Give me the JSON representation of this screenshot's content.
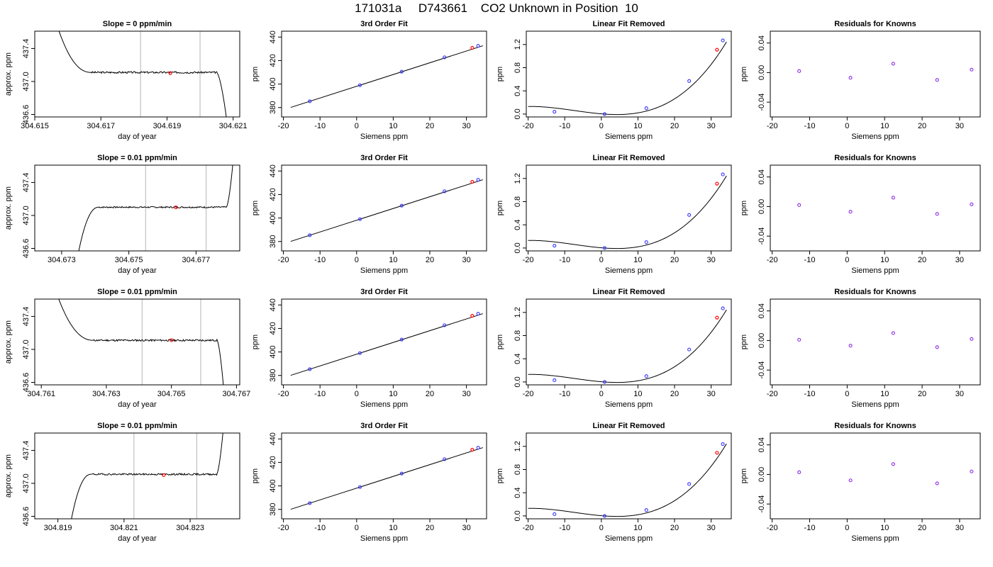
{
  "page": {
    "title": "171031a     D743661    CO2 Unknown in Position  10"
  },
  "chart_data": [
    {
      "type": "line",
      "panel": "trace",
      "row": 1,
      "title": "Slope =  0  ppm/min",
      "xlabel": "day of year",
      "ylabel": "approx. ppm",
      "xlim": [
        304.615,
        304.6212
      ],
      "ylim": [
        436.57,
        437.61
      ],
      "xticks": [
        "304.615",
        "304.617",
        "304.619",
        "304.621"
      ],
      "yticks": [
        "436.6",
        "437.0",
        "437.4"
      ],
      "vlines": [
        304.6182,
        304.62
      ],
      "highlight_point": {
        "x": 304.6191,
        "y": 437.102
      },
      "trace": {
        "start_x": 304.6157,
        "stable_start_x": 304.6167,
        "stable_end_x": 304.6205,
        "end_x": 304.6208,
        "level": 437.11,
        "amplitude": 0.011,
        "start_y": 437.65,
        "end_y": 436.55,
        "seed": 3
      }
    },
    {
      "type": "line",
      "panel": "trace",
      "row": 2,
      "title": "Slope =  0.01  ppm/min",
      "xlabel": "day of year",
      "ylabel": "approx. ppm",
      "xlim": [
        304.6722,
        304.6783
      ],
      "ylim": [
        436.57,
        437.61
      ],
      "xticks": [
        "304.673",
        "304.675",
        "304.677"
      ],
      "yticks": [
        "436.6",
        "437.0",
        "437.4"
      ],
      "vlines": [
        304.6755,
        304.6773
      ],
      "highlight_point": {
        "x": 304.6764,
        "y": 437.098
      },
      "trace": {
        "start_x": 304.6735,
        "stable_start_x": 304.6741,
        "stable_end_x": 304.6779,
        "end_x": 304.6781,
        "level": 437.1,
        "amplitude": 0.009,
        "start_y": 436.55,
        "end_y": 437.65,
        "seed": 7
      }
    },
    {
      "type": "line",
      "panel": "trace",
      "row": 3,
      "title": "Slope =  0.01  ppm/min",
      "xlabel": "day of year",
      "ylabel": "approx. ppm",
      "xlim": [
        304.7608,
        304.7671
      ],
      "ylim": [
        436.57,
        437.61
      ],
      "xticks": [
        "304.761",
        "304.763",
        "304.765",
        "304.767"
      ],
      "yticks": [
        "436.6",
        "437.0",
        "437.4"
      ],
      "vlines": [
        304.7641,
        304.7659
      ],
      "highlight_point": {
        "x": 304.765,
        "y": 437.112
      },
      "trace": {
        "start_x": 304.7615,
        "stable_start_x": 304.7626,
        "stable_end_x": 304.7664,
        "end_x": 304.7666,
        "level": 437.11,
        "amplitude": 0.011,
        "start_y": 437.65,
        "end_y": 436.55,
        "seed": 11
      }
    },
    {
      "type": "line",
      "panel": "trace",
      "row": 4,
      "title": "Slope =  0.01  ppm/min",
      "xlabel": "day of year",
      "ylabel": "approx. ppm",
      "xlim": [
        304.8183,
        304.8245
      ],
      "ylim": [
        436.57,
        437.61
      ],
      "xticks": [
        "304.819",
        "304.821",
        "304.823"
      ],
      "yticks": [
        "436.6",
        "437.0",
        "437.4"
      ],
      "vlines": [
        304.8213,
        304.8232
      ],
      "highlight_point": {
        "x": 304.8222,
        "y": 437.1
      },
      "trace": {
        "start_x": 304.8194,
        "stable_start_x": 304.82,
        "stable_end_x": 304.8238,
        "end_x": 304.824,
        "level": 437.11,
        "amplitude": 0.01,
        "start_y": 436.55,
        "end_y": 437.65,
        "seed": 19
      }
    },
    {
      "type": "scatter",
      "panel": "fit",
      "row": 1,
      "title": "3rd Order Fit",
      "xlabel": "Siemens ppm",
      "ylabel": "ppm",
      "xlim": [
        -20.5,
        35.5
      ],
      "ylim": [
        372,
        445
      ],
      "xticks": [
        "-20",
        "-10",
        "0",
        "10",
        "20",
        "30"
      ],
      "yticks": [
        "380",
        "400",
        "420",
        "440"
      ],
      "curve": {
        "x0": -18,
        "x1": 34.5,
        "intercept": 398.1,
        "slope": 1.0
      },
      "knowns": [
        {
          "x": -12.8,
          "y": 385.3
        },
        {
          "x": 0.9,
          "y": 399.0
        },
        {
          "x": 12.3,
          "y": 410.5
        },
        {
          "x": 24.0,
          "y": 422.7
        },
        {
          "x": 33.2,
          "y": 432.5
        }
      ],
      "unknowns": [
        {
          "x": 31.6,
          "y": 430.8
        }
      ]
    },
    {
      "type": "scatter",
      "panel": "fit",
      "row": 2,
      "title": "3rd Order Fit",
      "xlabel": "Siemens ppm",
      "ylabel": "ppm",
      "xlim": [
        -20.5,
        35.5
      ],
      "ylim": [
        372,
        445
      ],
      "xticks": [
        "-20",
        "-10",
        "0",
        "10",
        "20",
        "30"
      ],
      "yticks": [
        "380",
        "400",
        "420",
        "440"
      ],
      "curve": {
        "x0": -18,
        "x1": 34.5,
        "intercept": 398.1,
        "slope": 1.0
      },
      "knowns": [
        {
          "x": -12.8,
          "y": 385.3
        },
        {
          "x": 0.9,
          "y": 399.0
        },
        {
          "x": 12.3,
          "y": 410.5
        },
        {
          "x": 24.0,
          "y": 422.7
        },
        {
          "x": 33.2,
          "y": 432.5
        }
      ],
      "unknowns": [
        {
          "x": 31.6,
          "y": 430.8
        }
      ]
    },
    {
      "type": "scatter",
      "panel": "fit",
      "row": 3,
      "title": "3rd Order Fit",
      "xlabel": "Siemens ppm",
      "ylabel": "ppm",
      "xlim": [
        -20.5,
        35.5
      ],
      "ylim": [
        372,
        445
      ],
      "xticks": [
        "-20",
        "-10",
        "0",
        "10",
        "20",
        "30"
      ],
      "yticks": [
        "380",
        "400",
        "420",
        "440"
      ],
      "curve": {
        "x0": -18,
        "x1": 34.5,
        "intercept": 398.1,
        "slope": 1.0
      },
      "knowns": [
        {
          "x": -12.8,
          "y": 385.3
        },
        {
          "x": 0.9,
          "y": 399.0
        },
        {
          "x": 12.3,
          "y": 410.5
        },
        {
          "x": 24.0,
          "y": 422.7
        },
        {
          "x": 33.2,
          "y": 432.5
        }
      ],
      "unknowns": [
        {
          "x": 31.6,
          "y": 430.8
        }
      ]
    },
    {
      "type": "scatter",
      "panel": "fit",
      "row": 4,
      "title": "3rd Order Fit",
      "xlabel": "Siemens ppm",
      "ylabel": "ppm",
      "xlim": [
        -20.5,
        35.5
      ],
      "ylim": [
        372,
        445
      ],
      "xticks": [
        "-20",
        "-10",
        "0",
        "10",
        "20",
        "30"
      ],
      "yticks": [
        "380",
        "400",
        "420",
        "440"
      ],
      "curve": {
        "x0": -18,
        "x1": 34.5,
        "intercept": 398.1,
        "slope": 1.0
      },
      "knowns": [
        {
          "x": -12.8,
          "y": 385.3
        },
        {
          "x": 0.9,
          "y": 399.0
        },
        {
          "x": 12.3,
          "y": 410.5
        },
        {
          "x": 24.0,
          "y": 422.7
        },
        {
          "x": 33.2,
          "y": 432.5
        }
      ],
      "unknowns": [
        {
          "x": 31.6,
          "y": 430.8
        }
      ]
    },
    {
      "type": "scatter",
      "panel": "linear_removed",
      "row": 1,
      "title": "Linear Fit Removed",
      "xlabel": "Siemens ppm",
      "ylabel": "ppm",
      "xlim": [
        -20.5,
        35.5
      ],
      "ylim": [
        -0.05,
        1.43
      ],
      "xticks": [
        "-20",
        "-10",
        "0",
        "10",
        "20",
        "30"
      ],
      "yticks": [
        "0.0",
        "0.4",
        "0.8",
        "1.2"
      ],
      "curve": {
        "x0": -20,
        "x1": 34.2
      },
      "knowns": [
        {
          "x": -12.8,
          "y": 0.04
        },
        {
          "x": 0.9,
          "y": 0.0
        },
        {
          "x": 12.3,
          "y": 0.1
        },
        {
          "x": 24.0,
          "y": 0.57
        },
        {
          "x": 33.2,
          "y": 1.27
        }
      ],
      "unknowns": [
        {
          "x": 31.6,
          "y": 1.11
        }
      ]
    },
    {
      "type": "scatter",
      "panel": "linear_removed",
      "row": 2,
      "title": "Linear Fit Removed",
      "xlabel": "Siemens ppm",
      "ylabel": "ppm",
      "xlim": [
        -20.5,
        35.5
      ],
      "ylim": [
        -0.05,
        1.43
      ],
      "xticks": [
        "-20",
        "-10",
        "0",
        "10",
        "20",
        "30"
      ],
      "yticks": [
        "0.0",
        "0.4",
        "0.8",
        "1.2"
      ],
      "curve": {
        "x0": -20,
        "x1": 34.2
      },
      "knowns": [
        {
          "x": -12.8,
          "y": 0.04
        },
        {
          "x": 0.9,
          "y": 0.0
        },
        {
          "x": 12.3,
          "y": 0.1
        },
        {
          "x": 24.0,
          "y": 0.57
        },
        {
          "x": 33.2,
          "y": 1.27
        }
      ],
      "unknowns": [
        {
          "x": 31.6,
          "y": 1.11
        }
      ]
    },
    {
      "type": "scatter",
      "panel": "linear_removed",
      "row": 3,
      "title": "Linear Fit Removed",
      "xlabel": "Siemens ppm",
      "ylabel": "ppm",
      "xlim": [
        -20.5,
        35.5
      ],
      "ylim": [
        -0.05,
        1.43
      ],
      "xticks": [
        "-20",
        "-10",
        "0",
        "10",
        "20",
        "30"
      ],
      "yticks": [
        "0.0",
        "0.4",
        "0.8",
        "1.2"
      ],
      "curve": {
        "x0": -20,
        "x1": 34.2
      },
      "knowns": [
        {
          "x": -12.8,
          "y": 0.03
        },
        {
          "x": 0.9,
          "y": 0.0
        },
        {
          "x": 12.3,
          "y": 0.1
        },
        {
          "x": 24.0,
          "y": 0.56
        },
        {
          "x": 33.2,
          "y": 1.27
        }
      ],
      "unknowns": [
        {
          "x": 31.6,
          "y": 1.11
        }
      ]
    },
    {
      "type": "scatter",
      "panel": "linear_removed",
      "row": 4,
      "title": "Linear Fit Removed",
      "xlabel": "Siemens ppm",
      "ylabel": "ppm",
      "xlim": [
        -20.5,
        35.5
      ],
      "ylim": [
        -0.05,
        1.43
      ],
      "xticks": [
        "-20",
        "-10",
        "0",
        "10",
        "20",
        "30"
      ],
      "yticks": [
        "0.0",
        "0.4",
        "0.8",
        "1.2"
      ],
      "curve": {
        "x0": -20,
        "x1": 34.2
      },
      "knowns": [
        {
          "x": -12.8,
          "y": 0.03
        },
        {
          "x": 0.9,
          "y": 0.0
        },
        {
          "x": 12.3,
          "y": 0.1
        },
        {
          "x": 24.0,
          "y": 0.55
        },
        {
          "x": 33.2,
          "y": 1.24
        }
      ],
      "unknowns": [
        {
          "x": 31.6,
          "y": 1.09
        }
      ]
    },
    {
      "type": "scatter",
      "panel": "residuals",
      "row": 1,
      "title": "Residuals for Knowns",
      "xlabel": "Siemens ppm",
      "ylabel": "ppm",
      "xlim": [
        -20.5,
        35.5
      ],
      "ylim": [
        -0.06,
        0.056
      ],
      "xticks": [
        "-20",
        "-10",
        "0",
        "10",
        "20",
        "30"
      ],
      "yticks": [
        "-0.04",
        "0.00",
        "0.04"
      ],
      "knowns": [
        {
          "x": -12.8,
          "y": 0.002
        },
        {
          "x": 0.9,
          "y": -0.007
        },
        {
          "x": 12.3,
          "y": 0.012
        },
        {
          "x": 24.0,
          "y": -0.01
        },
        {
          "x": 33.2,
          "y": 0.004
        }
      ]
    },
    {
      "type": "scatter",
      "panel": "residuals",
      "row": 2,
      "title": "Residuals for Knowns",
      "xlabel": "Siemens ppm",
      "ylabel": "ppm",
      "xlim": [
        -20.5,
        35.5
      ],
      "ylim": [
        -0.06,
        0.056
      ],
      "xticks": [
        "-20",
        "-10",
        "0",
        "10",
        "20",
        "30"
      ],
      "yticks": [
        "-0.04",
        "0.00",
        "0.04"
      ],
      "knowns": [
        {
          "x": -12.8,
          "y": 0.002
        },
        {
          "x": 0.9,
          "y": -0.007
        },
        {
          "x": 12.3,
          "y": 0.012
        },
        {
          "x": 24.0,
          "y": -0.01
        },
        {
          "x": 33.2,
          "y": 0.003
        }
      ]
    },
    {
      "type": "scatter",
      "panel": "residuals",
      "row": 3,
      "title": "Residuals for Knowns",
      "xlabel": "Siemens ppm",
      "ylabel": "ppm",
      "xlim": [
        -20.5,
        35.5
      ],
      "ylim": [
        -0.06,
        0.056
      ],
      "xticks": [
        "-20",
        "-10",
        "0",
        "10",
        "20",
        "30"
      ],
      "yticks": [
        "-0.04",
        "0.00",
        "0.04"
      ],
      "knowns": [
        {
          "x": -12.8,
          "y": 0.001
        },
        {
          "x": 0.9,
          "y": -0.007
        },
        {
          "x": 12.3,
          "y": 0.01
        },
        {
          "x": 24.0,
          "y": -0.009
        },
        {
          "x": 33.2,
          "y": 0.002
        }
      ]
    },
    {
      "type": "scatter",
      "panel": "residuals",
      "row": 4,
      "title": "Residuals for Knowns",
      "xlabel": "Siemens ppm",
      "ylabel": "ppm",
      "xlim": [
        -20.5,
        35.5
      ],
      "ylim": [
        -0.06,
        0.056
      ],
      "xticks": [
        "-20",
        "-10",
        "0",
        "10",
        "20",
        "30"
      ],
      "yticks": [
        "-0.04",
        "0.00",
        "0.04"
      ],
      "knowns": [
        {
          "x": -12.8,
          "y": 0.003
        },
        {
          "x": 0.9,
          "y": -0.008
        },
        {
          "x": 12.3,
          "y": 0.014
        },
        {
          "x": 24.0,
          "y": -0.012
        },
        {
          "x": 33.2,
          "y": 0.004
        }
      ]
    }
  ],
  "colors": {
    "known_marker": "#3333ff",
    "unknown_marker": "#ff0000",
    "trace_line": "#000000",
    "vline": "#c0c0c0",
    "residual_marker": "#8a2be2",
    "axes": "#000000"
  }
}
